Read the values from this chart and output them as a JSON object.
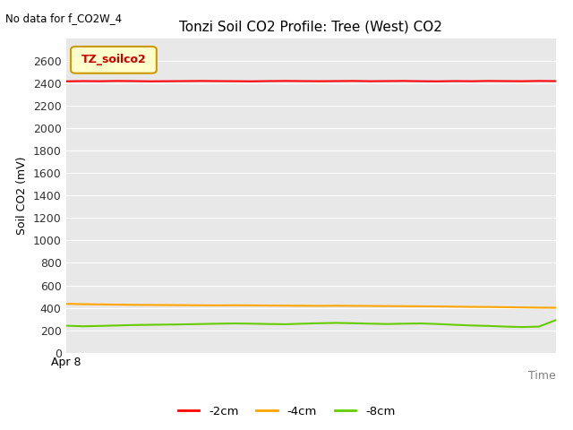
{
  "title": "Tonzi Soil CO2 Profile: Tree (West) CO2",
  "no_data_label": "No data for f_CO2W_4",
  "xlabel": "Time",
  "ylabel": "Soil CO2 (mV)",
  "xstart_label": "Apr 8",
  "ylim": [
    0,
    2800
  ],
  "yticks": [
    0,
    200,
    400,
    600,
    800,
    1000,
    1200,
    1400,
    1600,
    1800,
    2000,
    2200,
    2400,
    2600
  ],
  "legend_label": "TZ_soilco2",
  "legend_bg": "#ffffcc",
  "legend_border": "#cc9900",
  "plot_bg": "#e8e8e8",
  "fig_bg": "#ffffff",
  "grid_color": "#ffffff",
  "series": [
    {
      "label": "-2cm",
      "color": "#ff0000",
      "points": [
        2420,
        2422,
        2421,
        2423,
        2422,
        2420,
        2421,
        2422,
        2423,
        2422,
        2421,
        2420,
        2422,
        2423,
        2422,
        2421,
        2422,
        2423,
        2421,
        2422,
        2423,
        2421,
        2420,
        2422,
        2421,
        2423,
        2422,
        2421,
        2423,
        2422
      ]
    },
    {
      "label": "-4cm",
      "color": "#ffa500",
      "points": [
        435,
        432,
        430,
        428,
        426,
        425,
        424,
        423,
        422,
        421,
        422,
        421,
        420,
        419,
        418,
        417,
        418,
        417,
        416,
        415,
        414,
        413,
        412,
        410,
        408,
        407,
        405,
        403,
        401,
        400
      ]
    },
    {
      "label": "-8cm",
      "color": "#66cc00",
      "points": [
        240,
        235,
        238,
        242,
        246,
        248,
        250,
        252,
        255,
        258,
        260,
        258,
        255,
        253,
        258,
        262,
        265,
        262,
        258,
        255,
        258,
        260,
        255,
        248,
        242,
        238,
        232,
        228,
        232,
        290
      ]
    }
  ],
  "bottom_legend_colors": [
    "#ff0000",
    "#ffa500",
    "#66cc00"
  ],
  "bottom_legend_labels": [
    "-2cm",
    "-4cm",
    "-8cm"
  ]
}
